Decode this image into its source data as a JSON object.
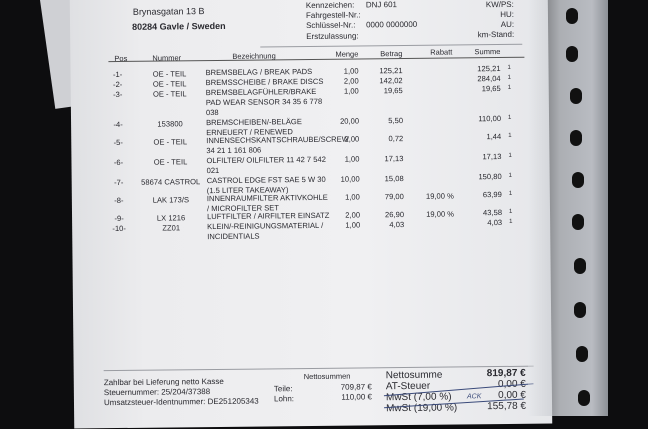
{
  "address": {
    "street": "Brynasgatan 13 B",
    "city": "80284 Gavle / Sweden"
  },
  "vehicle": {
    "kennzeichen_label": "Kennzeichen:",
    "kennzeichen": "DNJ 601",
    "fahrgestell_label": "Fahrgestell-Nr.:",
    "schluessel_label": "Schlüssel-Nr.:",
    "schluessel": "0000 0000000",
    "erstzulassung_label": "Erstzulassung:",
    "kwps_label": "KW/PS:",
    "hu_label": "HU:",
    "au_label": "AU:",
    "km_label": "km-Stand:"
  },
  "table": {
    "headers": [
      "Pos",
      "Nummer",
      "Bezeichnung",
      "Menge",
      "Betrag",
      "Rabatt",
      "Summe"
    ],
    "rows": [
      {
        "pos": "-1-",
        "nummer": "OE - TEIL",
        "bez": [
          "BREMSBELAG / BREAK PADS"
        ],
        "menge": "1,00",
        "betrag": "125,21",
        "rabatt": "",
        "summe": "125,21",
        "code": "1"
      },
      {
        "pos": "-2-",
        "nummer": "OE - TEIL",
        "bez": [
          "BREMSSCHEIBE / BRAKE DISCS"
        ],
        "menge": "2,00",
        "betrag": "142,02",
        "rabatt": "",
        "summe": "284,04",
        "code": "1"
      },
      {
        "pos": "-3-",
        "nummer": "OE - TEIL",
        "bez": [
          "BREMSBELAGFÜHLER/BRAKE",
          "PAD WEAR SENSOR 34 35 6 778",
          "038"
        ],
        "menge": "1,00",
        "betrag": "19,65",
        "rabatt": "",
        "summe": "19,65",
        "code": "1"
      },
      {
        "pos": "-4-",
        "nummer": "153800",
        "bez": [
          "BREMSCHEIBEN/-BELÄGE",
          "ERNEUERT / RENEWED"
        ],
        "menge": "20,00",
        "betrag": "5,50",
        "rabatt": "",
        "summe": "110,00",
        "code": "1"
      },
      {
        "pos": "-5-",
        "nummer": "OE - TEIL",
        "bez": [
          "INNENSECHSKANTSCHRAUBE/SCREW",
          "34 21 1 161 806"
        ],
        "menge": "2,00",
        "betrag": "0,72",
        "rabatt": "",
        "summe": "1,44",
        "code": "1"
      },
      {
        "pos": "-6-",
        "nummer": "OE - TEIL",
        "bez": [
          "OLFILTER/ OILFILTER 11 42 7 542",
          "021"
        ],
        "menge": "1,00",
        "betrag": "17,13",
        "rabatt": "",
        "summe": "17,13",
        "code": "1"
      },
      {
        "pos": "-7-",
        "nummer": "58674 CASTROL",
        "bez": [
          "CASTROL EDGE FST SAE 5 W 30",
          "(1.5 LITER TAKEAWAY)"
        ],
        "menge": "10,00",
        "betrag": "15,08",
        "rabatt": "",
        "summe": "150,80",
        "code": "1"
      },
      {
        "pos": "-8-",
        "nummer": "LAK 173/S",
        "bez": [
          "INNENRAUMFILTER AKTIVKOHLE",
          "/ MICROFILTER SET"
        ],
        "menge": "1,00",
        "betrag": "79,00",
        "rabatt": "19,00 %",
        "summe": "63,99",
        "code": "1"
      },
      {
        "pos": "-9-",
        "nummer": "LX 1216",
        "bez": [
          "LUFTFILTER / AIRFILTER EINSATZ"
        ],
        "menge": "2,00",
        "betrag": "26,90",
        "rabatt": "19,00 %",
        "summe": "43,58",
        "code": "1"
      },
      {
        "pos": "-10-",
        "nummer": "ZZ01",
        "bez": [
          "KLEIN/-REINIGUNGSMATERIAL /",
          "INCIDENTIALS"
        ],
        "menge": "1,00",
        "betrag": "4,03",
        "rabatt": "",
        "summe": "4,03",
        "code": "1"
      }
    ]
  },
  "footer": {
    "payment": "Zahlbar bei Lieferung netto Kasse",
    "steuernummer": "Steuernummer: 25/204/37388",
    "ustid": "Umsatzsteuer-Identnummer: DE251205343",
    "nettosummen_label": "Nettosummen",
    "teile_label": "Teile:",
    "teile": "709,87 €",
    "lohn_label": "Lohn:",
    "lohn": "110,00 €",
    "totals": [
      {
        "label": "Nettosumme",
        "value": "819,87 €"
      },
      {
        "label": "AT-Steuer",
        "value": "0,00 €"
      },
      {
        "label": "MwSt (7,00 %)",
        "value": "0,00 €"
      },
      {
        "label": "MwSt (19,00 %)",
        "value": "155,78 €"
      }
    ],
    "handwritten": "ACK"
  }
}
